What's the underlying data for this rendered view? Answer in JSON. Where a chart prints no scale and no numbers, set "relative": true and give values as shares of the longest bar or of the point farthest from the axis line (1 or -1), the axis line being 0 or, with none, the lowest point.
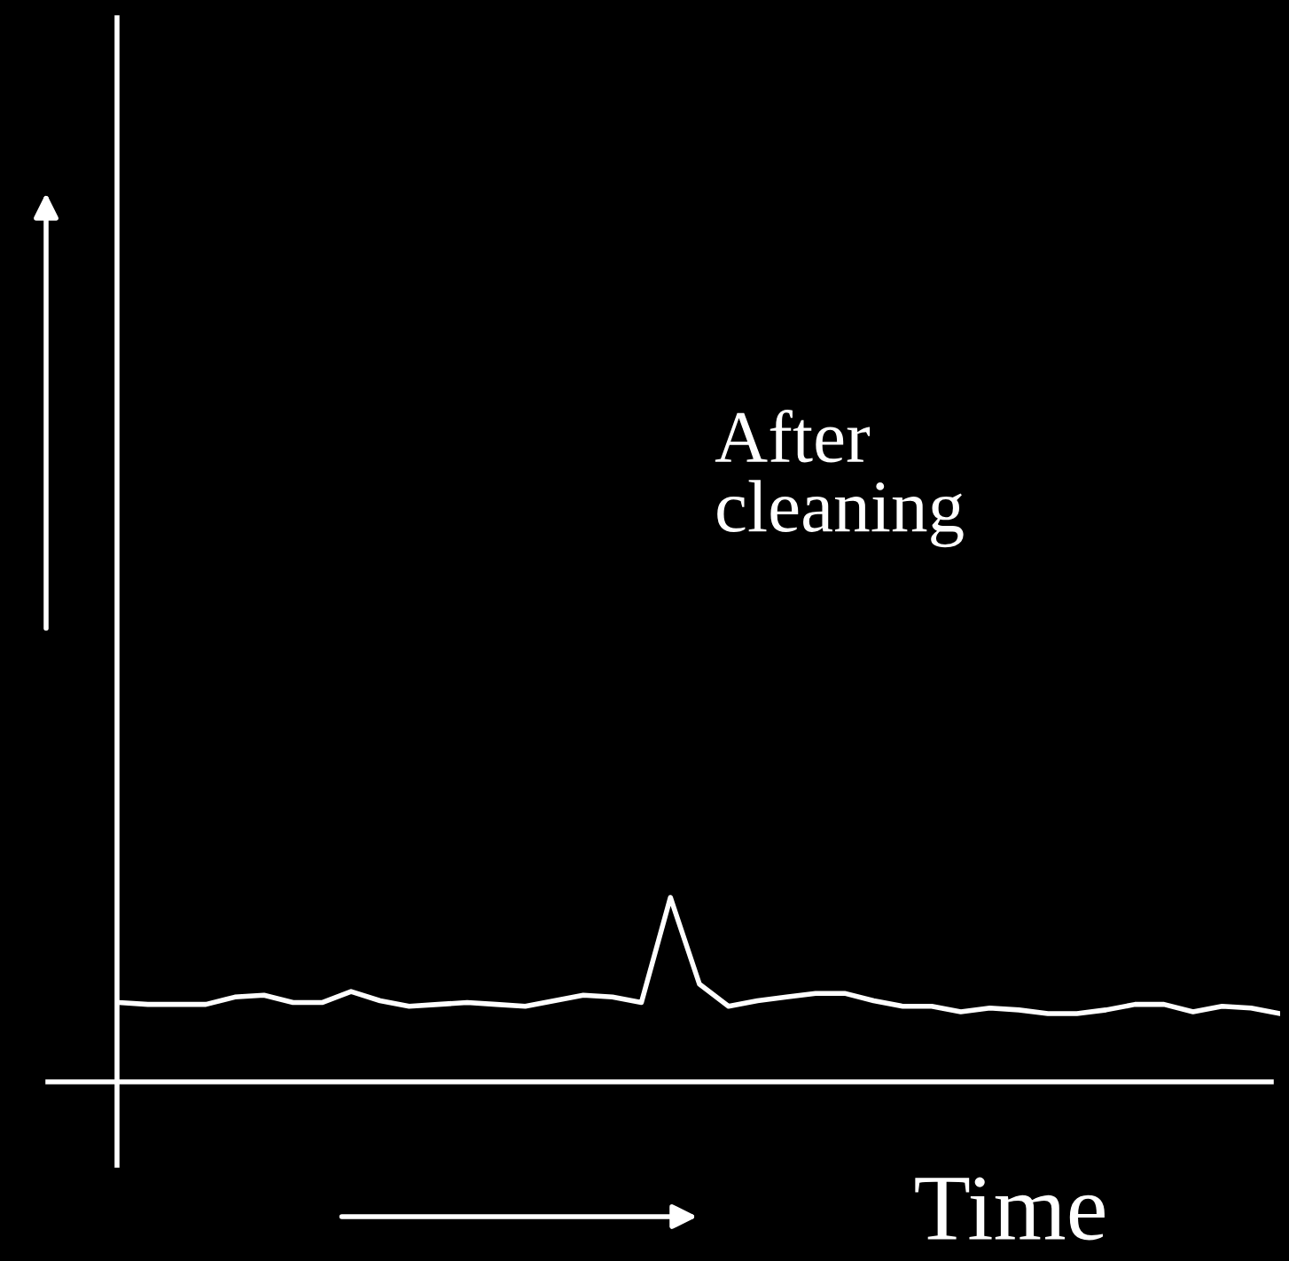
{
  "chart_data": {
    "type": "line",
    "relative": true,
    "xlabel": "Time",
    "color": "#ffffff",
    "annotations": [
      "After\ncleaning"
    ],
    "categories": [
      null,
      null,
      null,
      null,
      null,
      null,
      null,
      null,
      null,
      null,
      null,
      null,
      null,
      null,
      null,
      null,
      null,
      null,
      null,
      null,
      null,
      null,
      null,
      null,
      null,
      null,
      null,
      null,
      null,
      null,
      null,
      null,
      null,
      null,
      null,
      null,
      null,
      null,
      null,
      null,
      null
    ],
    "values": [
      0.43,
      0.42,
      0.42,
      0.42,
      0.46,
      0.47,
      0.43,
      0.43,
      0.49,
      0.44,
      0.41,
      0.42,
      0.43,
      0.42,
      0.41,
      0.44,
      0.47,
      0.46,
      0.43,
      1,
      0.53,
      0.41,
      0.44,
      0.46,
      0.48,
      0.48,
      0.44,
      0.41,
      0.41,
      0.38,
      0.4,
      0.39,
      0.37,
      0.37,
      0.39,
      0.42,
      0.42,
      0.38,
      0.41,
      0.4,
      0.37
    ],
    "grid": false,
    "legend": false
  }
}
